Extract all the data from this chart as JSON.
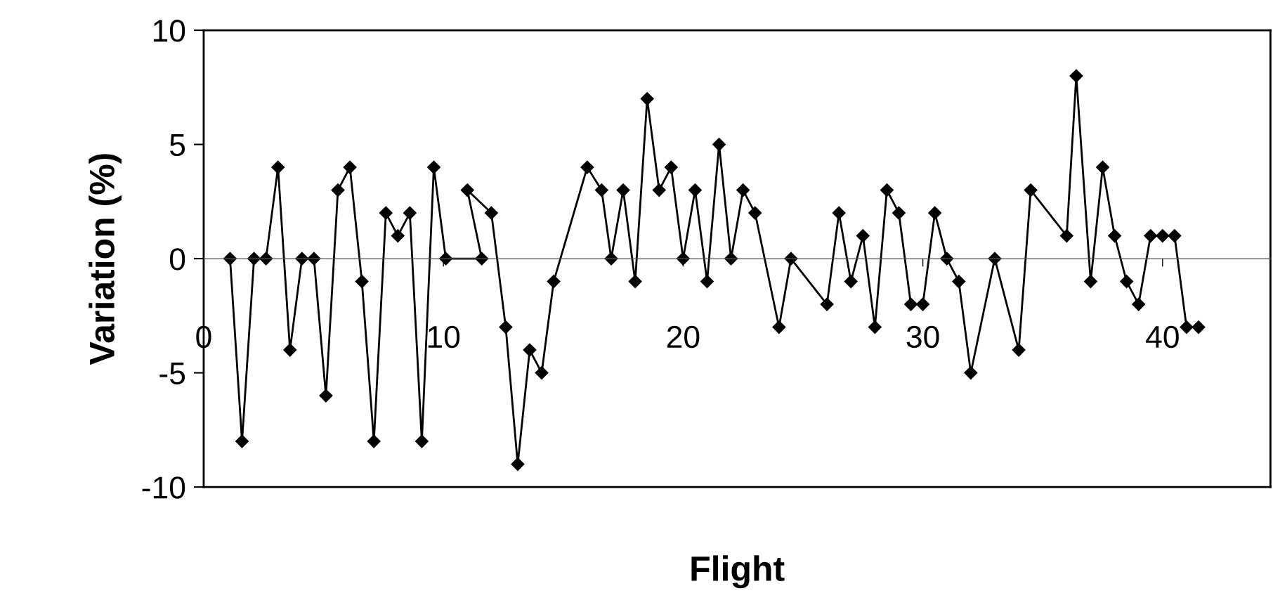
{
  "chart_data": {
    "type": "line",
    "xlabel": "Flight",
    "ylabel": "Variation (%)",
    "xlim": [
      0,
      44.5
    ],
    "xticks": [
      0,
      10,
      20,
      30,
      40
    ],
    "ylim": [
      -10,
      10
    ],
    "yticks": [
      -10,
      -5,
      0,
      5,
      10
    ],
    "grid": false,
    "marker": "diamond",
    "line_style": "solid",
    "series": [
      {
        "color": "#000000",
        "x": [
          1.1,
          1.6,
          2.1,
          2.6,
          3.1,
          3.6,
          4.1,
          4.6,
          5.1,
          5.6,
          6.1,
          6.6,
          7.1,
          7.6,
          8.1,
          8.6,
          9.1,
          9.6,
          10.1,
          11.6,
          11.0,
          12.0,
          12.6,
          13.1,
          13.6,
          14.1,
          14.6,
          16.0,
          16.6,
          17.0,
          17.5,
          18.0,
          18.5,
          19.0,
          19.5,
          20.0,
          20.5,
          21.0,
          21.5,
          22.0,
          22.5,
          23.0,
          24.0,
          24.5,
          26.0,
          26.5,
          27.0,
          27.5,
          28.0,
          28.5,
          29.0,
          29.5,
          30.0,
          30.5,
          31.0,
          31.5,
          32.0,
          33.0,
          34.0,
          34.5,
          36.0,
          36.4,
          37.0,
          37.5,
          38.0,
          38.5,
          39.0,
          39.5,
          40.0,
          40.5,
          41.0,
          41.5
        ],
        "values": [
          0,
          -8,
          0,
          0,
          4,
          -4,
          0,
          0,
          -6,
          3,
          4,
          -1,
          -8,
          2,
          1,
          2,
          -8,
          4,
          0,
          0,
          3,
          2,
          -3,
          -9,
          -4,
          -5,
          -1,
          4,
          3,
          0,
          3,
          -1,
          7,
          3,
          4,
          0,
          3,
          -1,
          5,
          0,
          3,
          2,
          -3,
          0,
          -2,
          2,
          -1,
          1,
          -3,
          3,
          2,
          -2,
          -2,
          2,
          0,
          -1,
          -5,
          0,
          -4,
          3,
          1,
          8,
          -1,
          4,
          1,
          -1,
          -2,
          1,
          1,
          1,
          -3,
          -3
        ]
      }
    ]
  }
}
